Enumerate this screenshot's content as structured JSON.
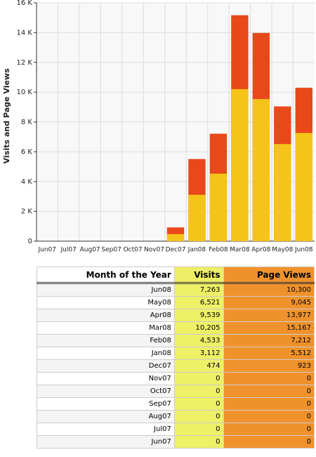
{
  "chart_data": {
    "type": "bar",
    "y_label": "Visits and Page Views",
    "categories": [
      "Jun07",
      "Jul07",
      "Aug07",
      "Sep07",
      "Oct07",
      "Nov07",
      "Dec07",
      "Jan08",
      "Feb08",
      "Mar08",
      "Apr08",
      "May08",
      "Jun08"
    ],
    "series": [
      {
        "name": "Page Views",
        "color": "#e8481a",
        "values": [
          0,
          0,
          0,
          0,
          0,
          0,
          923,
          5512,
          7212,
          15167,
          13977,
          9045,
          10300
        ]
      },
      {
        "name": "Visits",
        "color": "#f5c419",
        "values": [
          0,
          0,
          0,
          0,
          0,
          0,
          474,
          3112,
          4533,
          10205,
          9539,
          6521,
          7263
        ]
      }
    ],
    "ylim": [
      0,
      16000
    ],
    "yticks": [
      0,
      {
        "value": 2000,
        "label": "2 K"
      },
      {
        "value": 4000,
        "label": "4 K"
      },
      {
        "value": 6000,
        "label": "6 K"
      },
      {
        "value": 8000,
        "label": "8 K"
      },
      {
        "value": 10000,
        "label": "10 K"
      },
      {
        "value": 12000,
        "label": "12 K"
      },
      {
        "value": 14000,
        "label": "14 K"
      },
      {
        "value": 16000,
        "label": "16 K"
      }
    ],
    "grid": true
  },
  "table": {
    "header": [
      "Month of the Year",
      "Visits",
      "Page Views"
    ],
    "rows": [
      [
        "Jun08",
        "7,263",
        "10,300"
      ],
      [
        "May08",
        "6,521",
        "9,045"
      ],
      [
        "Apr08",
        "9,539",
        "13,977"
      ],
      [
        "Mar08",
        "10,205",
        "15,167"
      ],
      [
        "Feb08",
        "4,533",
        "7,212"
      ],
      [
        "Jan08",
        "3,112",
        "5,512"
      ],
      [
        "Dec07",
        "474",
        "923"
      ],
      [
        "Nov07",
        "0",
        "0"
      ],
      [
        "Oct07",
        "0",
        "0"
      ],
      [
        "Sep07",
        "0",
        "0"
      ],
      [
        "Aug07",
        "0",
        "0"
      ],
      [
        "Jul07",
        "0",
        "0"
      ],
      [
        "Jun07",
        "0",
        "0"
      ]
    ]
  }
}
